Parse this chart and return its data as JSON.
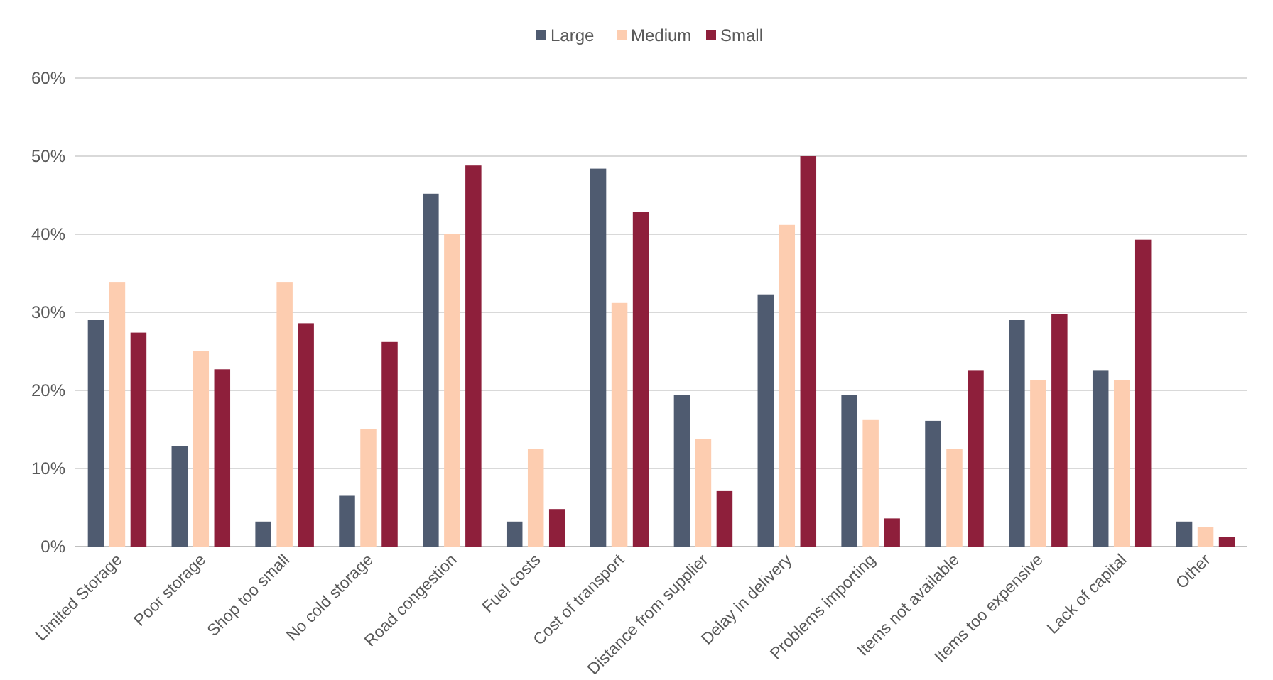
{
  "chart_data": {
    "type": "bar",
    "categories": [
      "Limited Storage",
      "Poor storage",
      "Shop too small",
      "No cold storage",
      "Road congestion",
      "Fuel costs",
      "Cost of transport",
      "Distance from supplier",
      "Delay in delivery",
      "Problems importing",
      "Items not available",
      "Items too expensive",
      "Lack of capital",
      "Other"
    ],
    "series": [
      {
        "name": "Large",
        "color": "#4f5b70",
        "values": [
          29,
          12.9,
          3.2,
          6.5,
          45.2,
          3.2,
          48.4,
          19.4,
          32.3,
          19.4,
          16.1,
          29,
          22.6,
          3.2
        ]
      },
      {
        "name": "Medium",
        "color": "#fdcdb0",
        "values": [
          33.9,
          25,
          33.9,
          15,
          40,
          12.5,
          31.2,
          13.8,
          41.2,
          16.2,
          12.5,
          21.3,
          21.3,
          2.5
        ]
      },
      {
        "name": "Small",
        "color": "#8e1f3b",
        "values": [
          27.4,
          22.7,
          28.6,
          26.2,
          48.8,
          4.8,
          42.9,
          7.1,
          50,
          3.6,
          22.6,
          29.8,
          39.3,
          1.2
        ]
      }
    ],
    "ylim": [
      0,
      60
    ],
    "yticks": [
      {
        "value": 0,
        "label": "0%"
      },
      {
        "value": 10,
        "label": "10%"
      },
      {
        "value": 20,
        "label": "20%"
      },
      {
        "value": 30,
        "label": "30%"
      },
      {
        "value": 40,
        "label": "40%"
      },
      {
        "value": 50,
        "label": "50%"
      },
      {
        "value": 60,
        "label": "60%"
      }
    ],
    "grid": "y",
    "legend": "top"
  }
}
